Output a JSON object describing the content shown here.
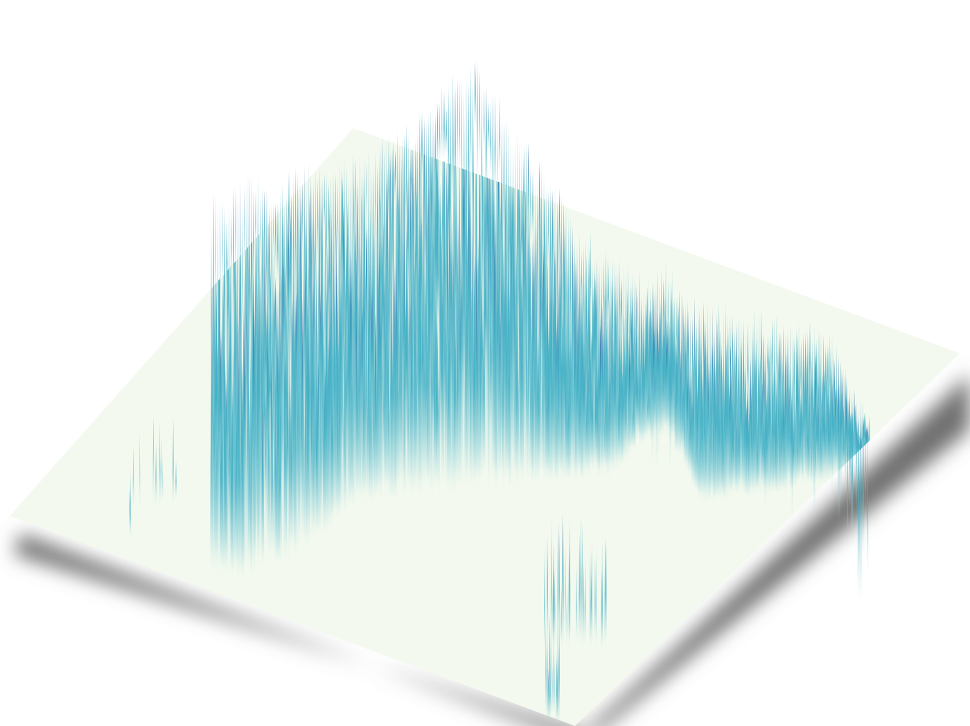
{
  "map": {
    "type": "3d-elevation-spike-map",
    "colors": {
      "background": "#ffffff",
      "base_plane": "#f3f9ee",
      "shadow": "#6f6f6f",
      "spike_light": "#c6e8e6",
      "spike_mid": "#45b1c6",
      "spike_dark": "#2a4fa0"
    },
    "legend": null,
    "title": ""
  }
}
